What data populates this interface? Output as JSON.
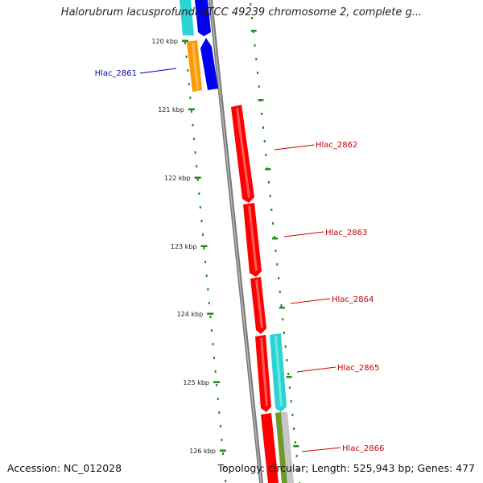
{
  "title": "Halorubrum lacusprofundi ATCC 49239 chromosome 2, complete g...",
  "footer": {
    "accession": "Accession: NC_012028",
    "summary": "Topology: circular; Length: 525,943 bp; Genes: 477"
  },
  "ruler": {
    "ticks": [
      {
        "label": "120 kbp",
        "kbp": 120
      },
      {
        "label": "121 kbp",
        "kbp": 121
      },
      {
        "label": "122 kbp",
        "kbp": 122
      },
      {
        "label": "123 kbp",
        "kbp": 123
      },
      {
        "label": "124 kbp",
        "kbp": 124
      },
      {
        "label": "125 kbp",
        "kbp": 125
      },
      {
        "label": "126 kbp",
        "kbp": 126
      }
    ]
  },
  "colors": {
    "forward": "#ff0000",
    "reverse": "#0000ee",
    "teal": "#2ad4d4",
    "orange": "#ff9900",
    "olive": "#6e9a2a",
    "silver": "#c6c6c6",
    "backbone": "#7a7a7a",
    "tick": "#1f8a1f",
    "label_forward": "#cc0000",
    "label_reverse": "#0000bb"
  },
  "genes": [
    {
      "name": "Hlac_2861",
      "strand": "reverse"
    },
    {
      "name": "Hlac_2862",
      "strand": "forward"
    },
    {
      "name": "Hlac_2863",
      "strand": "forward"
    },
    {
      "name": "Hlac_2864",
      "strand": "forward"
    },
    {
      "name": "Hlac_2865",
      "strand": "forward"
    },
    {
      "name": "Hlac_2866",
      "strand": "forward"
    }
  ]
}
